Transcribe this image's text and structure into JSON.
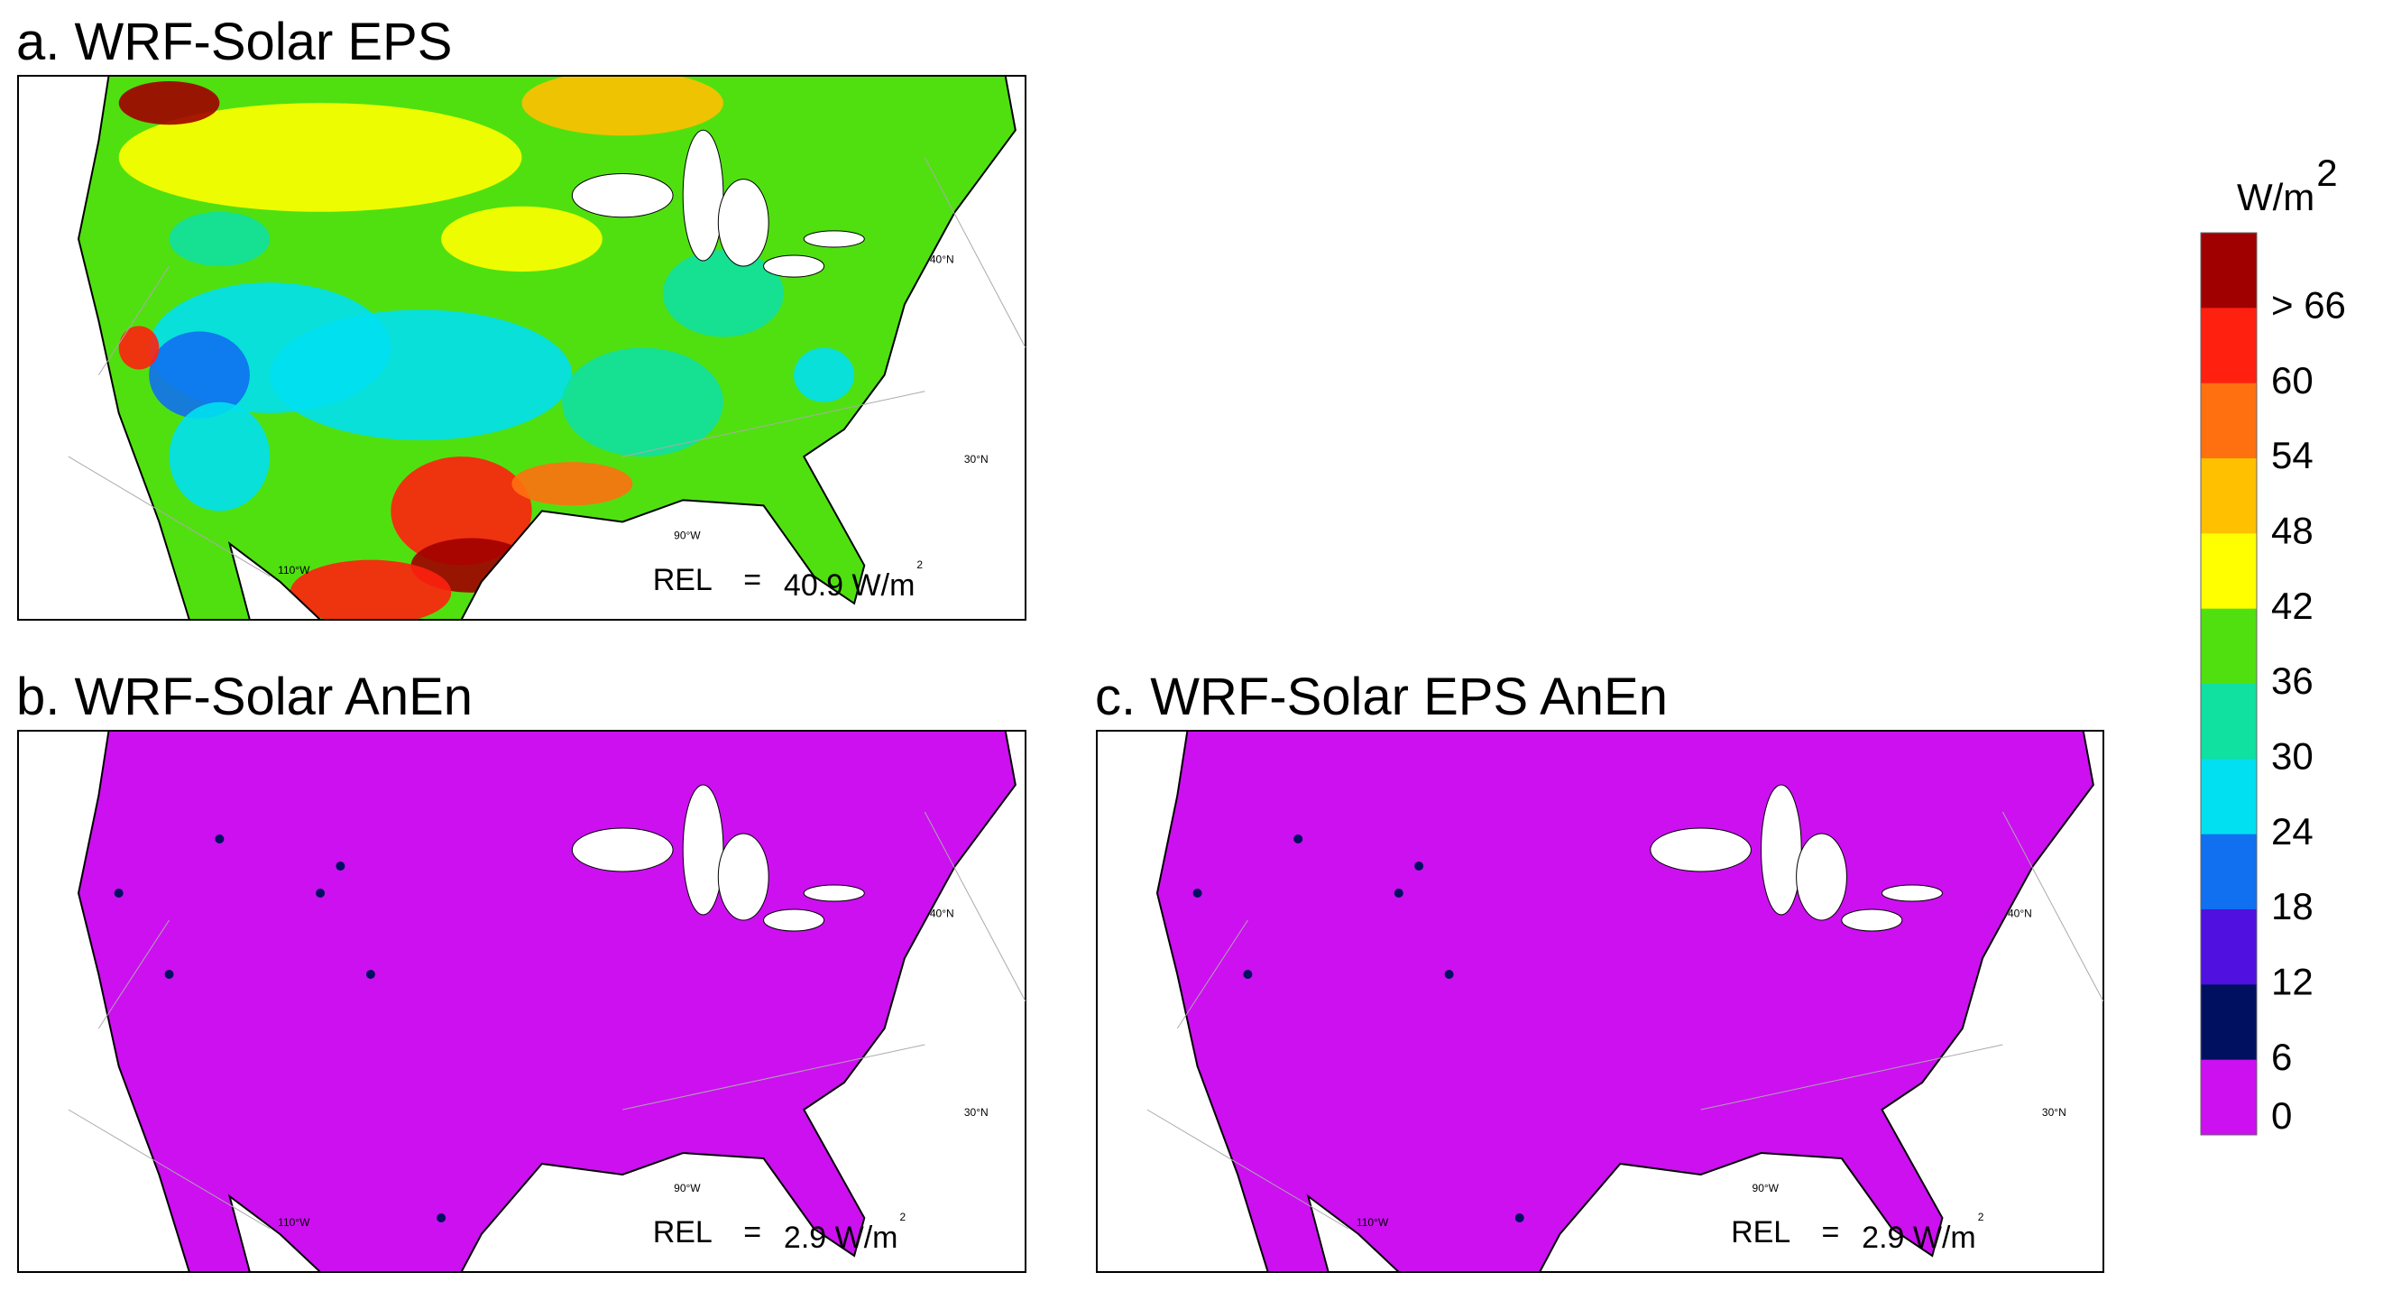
{
  "panels": [
    {
      "title": "a. WRF-Solar EPS",
      "rel_label": "REL",
      "rel_equals": "=",
      "rel_value": "40.9 W/m",
      "rel_superscript": "2"
    },
    {
      "title": "b. WRF-Solar AnEn",
      "rel_label": "REL",
      "rel_equals": "=",
      "rel_value": "2.9 W/m",
      "rel_superscript": "2"
    },
    {
      "title": "c. WRF-Solar EPS AnEn",
      "rel_label": "REL",
      "rel_equals": "=",
      "rel_value": "2.9 W/m",
      "rel_superscript": "2"
    }
  ],
  "map_labels": [
    "40°N",
    "30°N",
    "90°W",
    "110°W"
  ],
  "colorbar": {
    "unit": "W/m",
    "unit_superscript": "2",
    "colors": [
      "#a00000",
      "#ff2010",
      "#ff7010",
      "#ffc000",
      "#ffff00",
      "#50e010",
      "#10e0a0",
      "#00e0f0",
      "#1070f0",
      "#5010e0",
      "#001060",
      "#cc10f0"
    ],
    "labels": [
      "> 66",
      "60",
      "54",
      "48",
      "42",
      "36",
      "30",
      "24",
      "18",
      "12",
      "6",
      "0"
    ]
  }
}
